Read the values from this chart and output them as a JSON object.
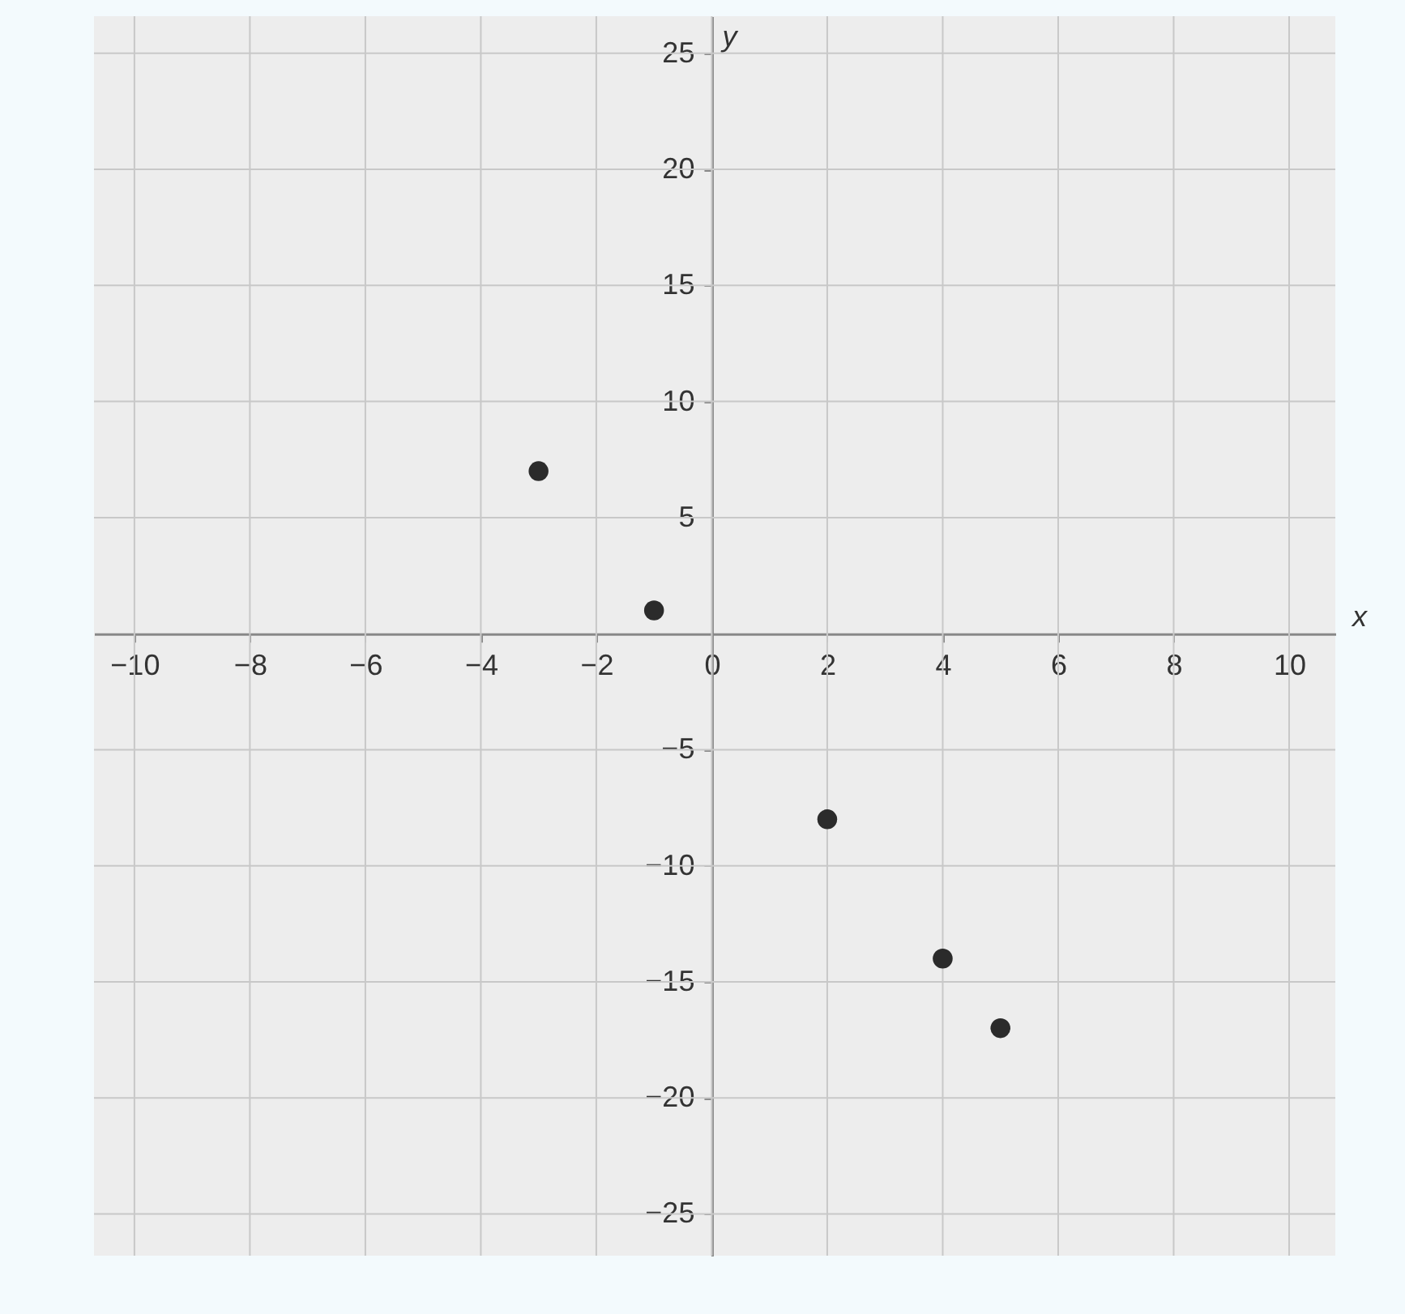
{
  "chart_data": {
    "type": "scatter",
    "xlabel": "x",
    "ylabel": "y",
    "x": [
      -3,
      -1,
      2,
      4,
      5
    ],
    "series": [
      {
        "color": "#2b2b2b",
        "values": [
          7,
          1,
          -8,
          -14,
          -17
        ]
      }
    ],
    "xlim": [
      -10.7,
      10.8
    ],
    "ylim": [
      -26.8,
      26.6
    ],
    "xticks": [
      -10,
      -8,
      -6,
      -4,
      -2,
      0,
      2,
      4,
      6,
      8,
      10
    ],
    "yticks": [
      -25,
      -20,
      -15,
      -10,
      -5,
      5,
      10,
      15,
      20,
      25
    ],
    "grid": true,
    "marker": "circle"
  }
}
